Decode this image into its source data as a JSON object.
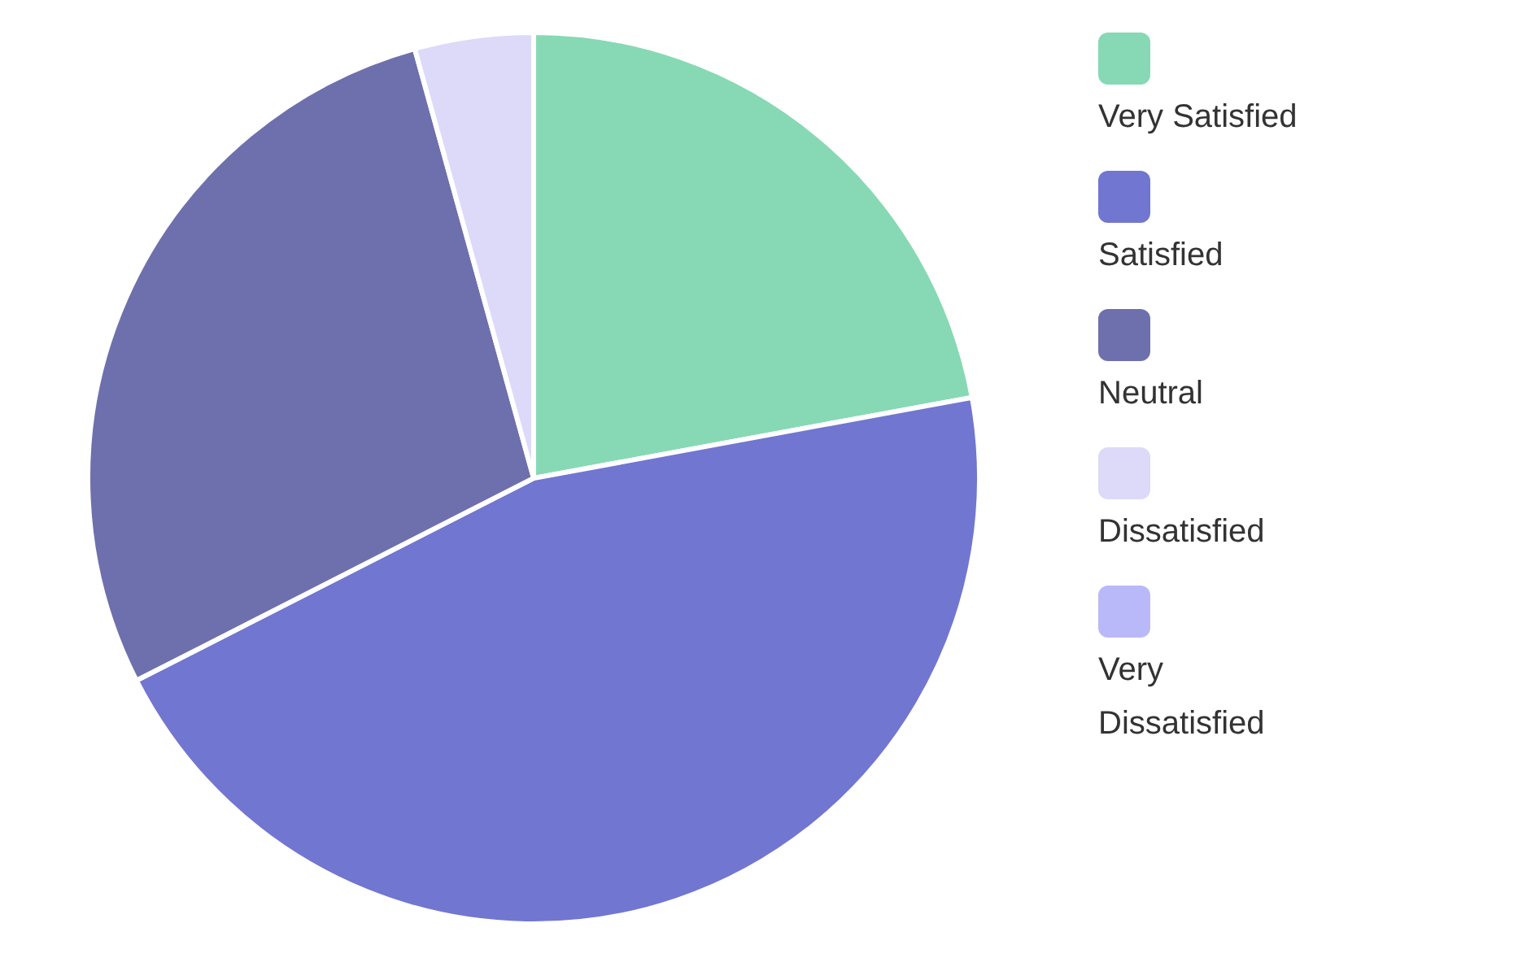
{
  "chart_data": {
    "type": "pie",
    "categories": [
      "Very Satisfied",
      "Satisfied",
      "Neutral",
      "Dissatisfied",
      "Very Dissatisfied"
    ],
    "values": [
      22.1,
      45.4,
      28.2,
      4.3,
      0
    ],
    "colors": [
      "#86d9b4",
      "#7176d1",
      "#6e70ad",
      "#dcdaf8",
      "#b9b9fa"
    ],
    "legend": "right"
  }
}
